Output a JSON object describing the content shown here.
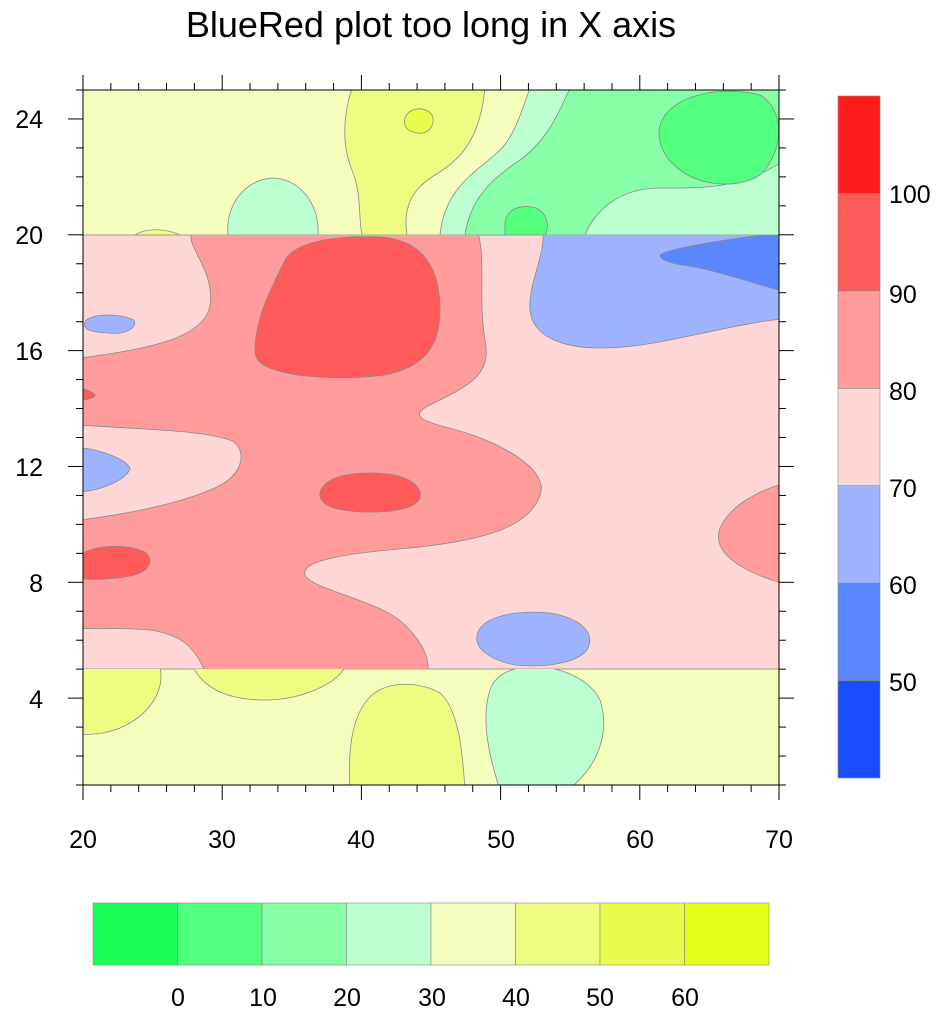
{
  "chart_data": {
    "type": "contour",
    "title": "BlueRed plot too long in X axis",
    "x_ticks": [
      "20",
      "30",
      "40",
      "50",
      "60",
      "70"
    ],
    "y_ticks": [
      "4",
      "8",
      "12",
      "16",
      "20",
      "24"
    ],
    "xlim": [
      20,
      70
    ],
    "ylim": [
      1,
      25
    ],
    "regions": [
      {
        "name": "bottom band",
        "y_range": [
          1,
          5
        ],
        "colormap": "green-yellow"
      },
      {
        "name": "middle band",
        "y_range": [
          5,
          20
        ],
        "colormap": "blue-red"
      },
      {
        "name": "top band",
        "y_range": [
          20,
          25
        ],
        "colormap": "green-yellow"
      }
    ],
    "colorbar_bluered": {
      "orientation": "vertical",
      "labels": [
        "50",
        "60",
        "70",
        "80",
        "90",
        "100"
      ],
      "colors": [
        "#1a4dff",
        "#5a86ff",
        "#9db3ff",
        "#ffd6d6",
        "#ff9b9b",
        "#ff5a5a",
        "#ff1c1c"
      ]
    },
    "colorbar_greenyellow": {
      "orientation": "horizontal",
      "labels": [
        "0",
        "10",
        "20",
        "30",
        "40",
        "50",
        "60"
      ],
      "colors": [
        "#1aff57",
        "#52ff7e",
        "#86ffa6",
        "#bcffd0",
        "#f5fdbd",
        "#eefc82",
        "#e8fc4c",
        "#e3ff17"
      ]
    }
  }
}
